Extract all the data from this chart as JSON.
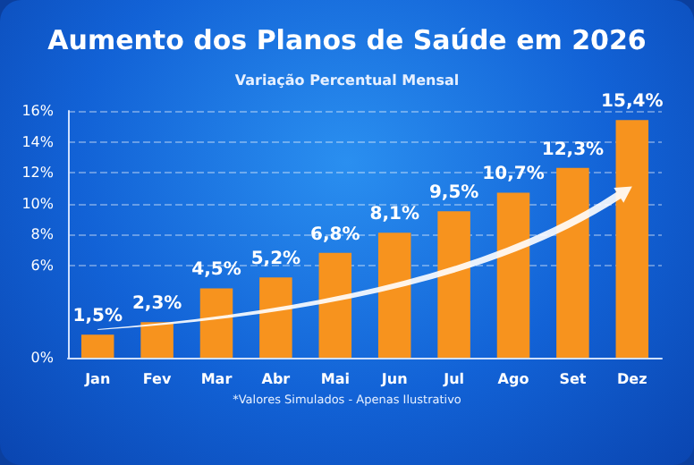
{
  "chart_data": {
    "type": "bar",
    "title": "Aumento dos Planos de Saúde em 2026",
    "subtitle": "Variação Percentual Mensal",
    "categories": [
      "Jan",
      "Fev",
      "Mar",
      "Abr",
      "Mai",
      "Jun",
      "Jul",
      "Ago",
      "Set",
      "Dez"
    ],
    "values": [
      1.5,
      2.3,
      4.5,
      5.2,
      6.8,
      8.1,
      9.5,
      10.7,
      12.3,
      15.4
    ],
    "value_labels": [
      "1,5%",
      "2,3%",
      "4,5%",
      "5,2%",
      "6,8%",
      "8,1%",
      "9,5%",
      "10,7%",
      "12,3%",
      "15,4%"
    ],
    "color": "#f7931e",
    "ylim": [
      0,
      16
    ],
    "yticks": [
      {
        "value": 0,
        "label": "0%"
      },
      {
        "value": 6,
        "label": "6%"
      },
      {
        "value": 8,
        "label": "8%"
      },
      {
        "value": 10,
        "label": "10%"
      },
      {
        "value": 12,
        "label": "12%"
      },
      {
        "value": 14,
        "label": "14%"
      },
      {
        "value": 16,
        "label": "16%"
      }
    ],
    "grid": "y",
    "annotations": [
      "*Valores Simulados - Apenas Ilustrativo"
    ]
  }
}
